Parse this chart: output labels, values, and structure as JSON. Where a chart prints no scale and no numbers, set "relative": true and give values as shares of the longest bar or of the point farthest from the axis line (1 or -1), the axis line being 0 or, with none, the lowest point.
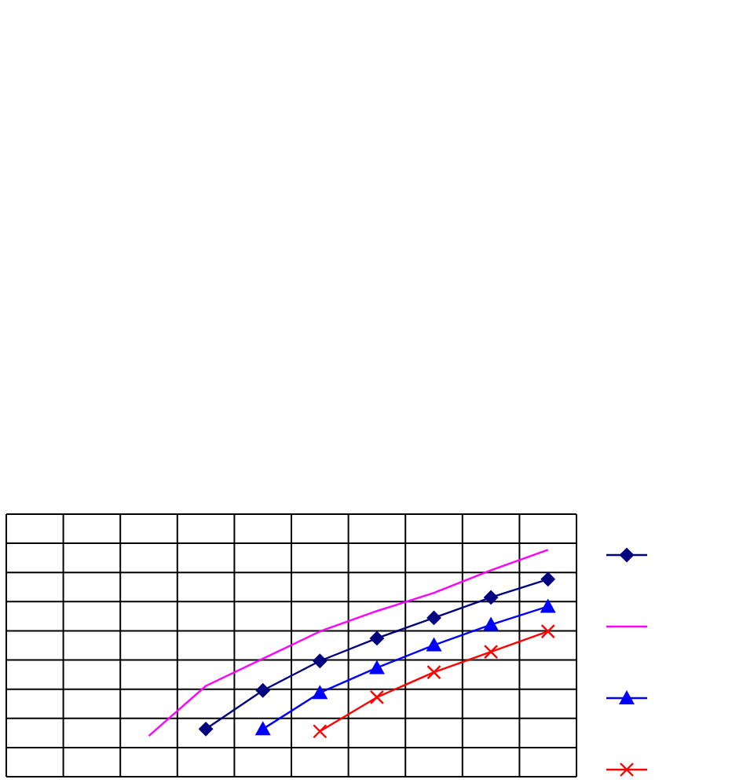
{
  "chart_data": {
    "type": "line",
    "relative": true,
    "grid": true,
    "categories": [
      null,
      null,
      null,
      null,
      null,
      null,
      null,
      null,
      null,
      null
    ],
    "series": [
      {
        "color": "#000080",
        "marker": "diamond",
        "values": [
          null,
          null,
          null,
          0.21,
          0.38,
          0.51,
          0.61,
          0.7,
          0.79,
          0.87
        ]
      },
      {
        "color": "#ff00ff",
        "marker": "none",
        "values": [
          null,
          null,
          0.18,
          0.4,
          0.52,
          0.64,
          0.73,
          0.81,
          0.91,
          1.0
        ]
      },
      {
        "color": "#0000ff",
        "marker": "triangle",
        "values": [
          null,
          null,
          null,
          null,
          0.21,
          0.37,
          0.48,
          0.58,
          0.67,
          0.75
        ]
      },
      {
        "color": "#ff0000",
        "marker": "cross",
        "values": [
          null,
          null,
          null,
          null,
          null,
          0.2,
          0.35,
          0.46,
          0.55,
          0.64
        ]
      }
    ]
  }
}
